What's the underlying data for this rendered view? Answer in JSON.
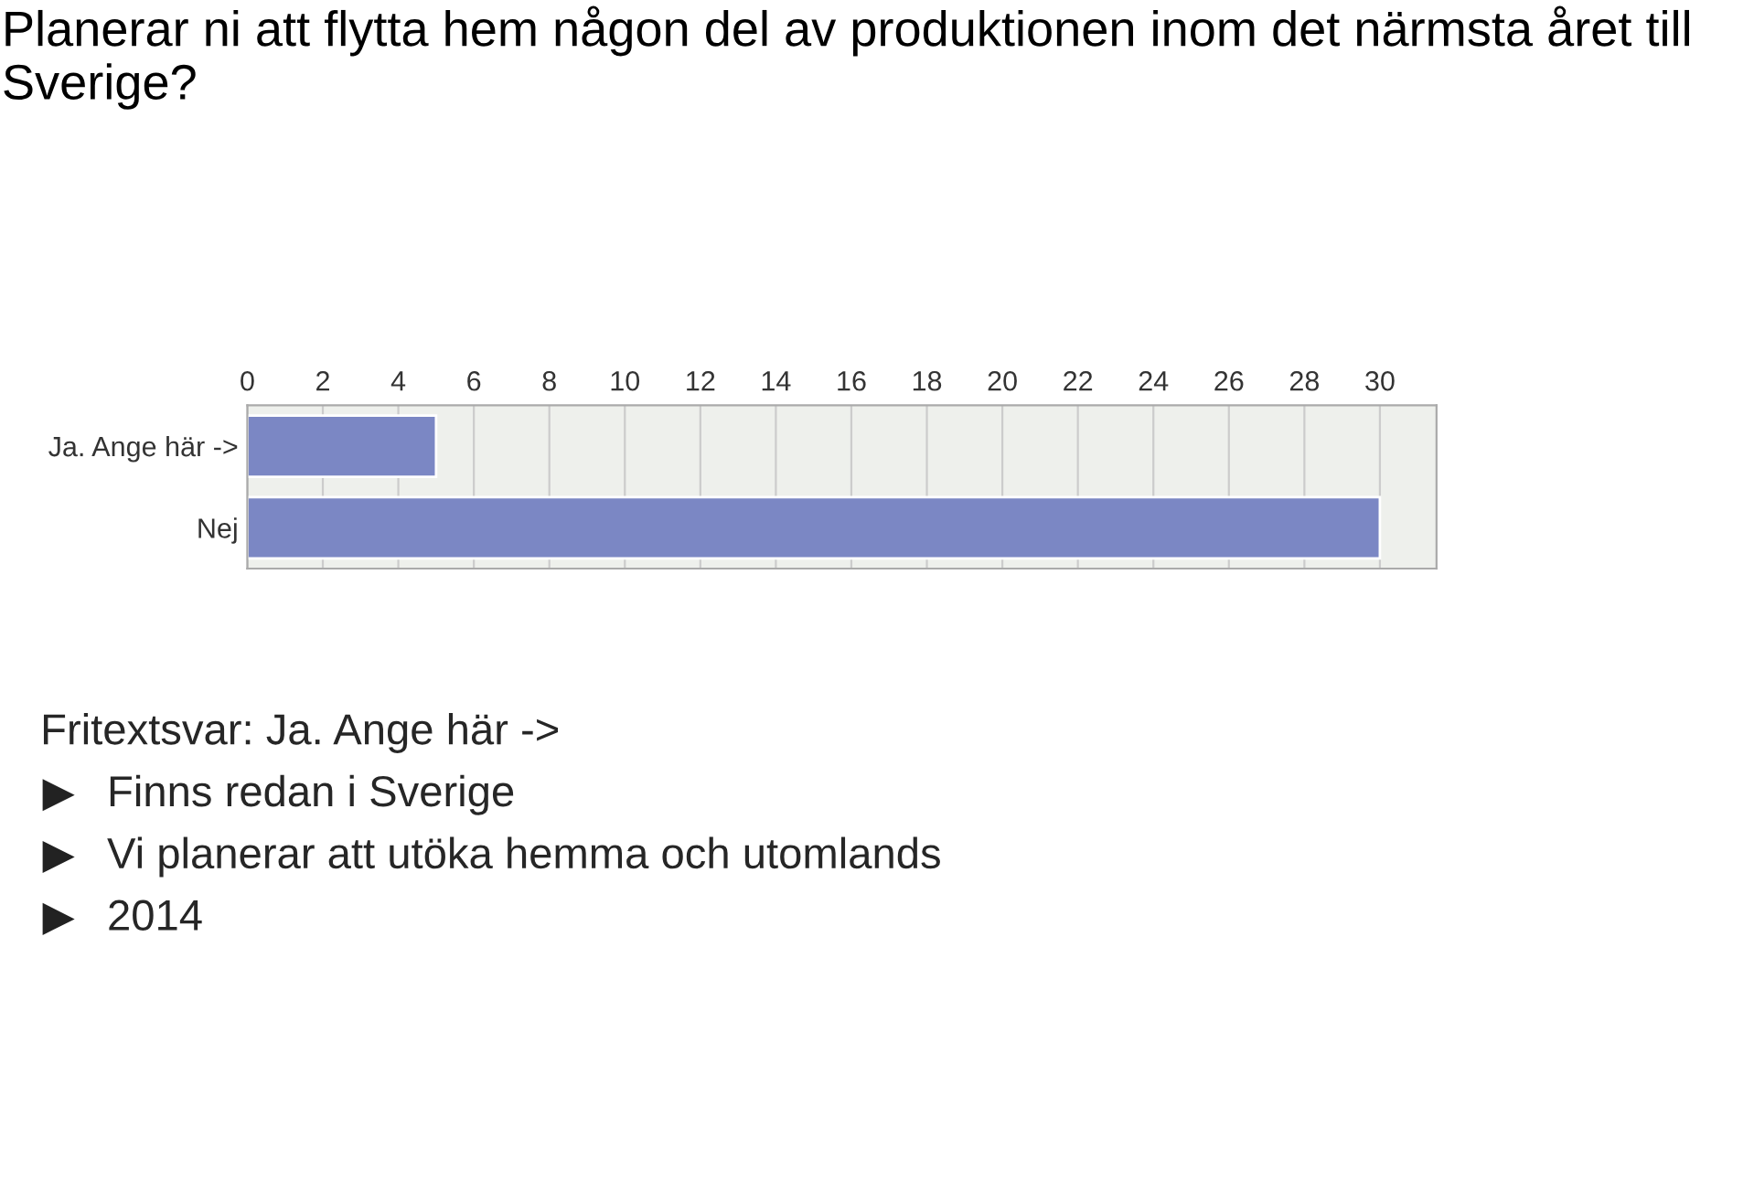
{
  "chart_data": {
    "type": "bar",
    "title": "Planerar ni att flytta hem någon del av produktionen inom det närmsta året till Sverige?",
    "orientation": "horizontal",
    "categories": [
      "Ja. Ange här ->",
      "Nej"
    ],
    "values": [
      5,
      30
    ],
    "color": "#7b87c4",
    "xlim": [
      0,
      31.5
    ],
    "xticks": [
      0,
      2,
      4,
      6,
      8,
      10,
      12,
      14,
      16,
      18,
      20,
      22,
      24,
      26,
      28,
      30
    ],
    "grid": "x",
    "annotations": [
      "Fritextsvar: Ja. Ange här ->",
      "Finns redan i Sverige",
      "Vi planerar att utöka hemma och utomlands",
      "2014"
    ]
  }
}
